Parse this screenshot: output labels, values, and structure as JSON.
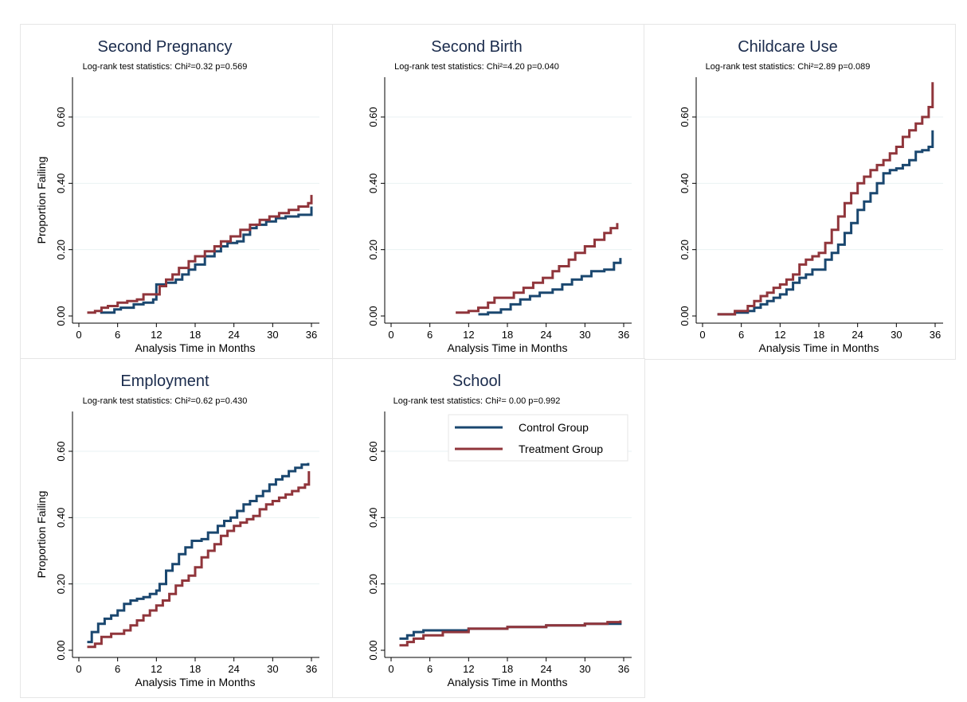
{
  "colors": {
    "control": "#1a476f",
    "treatment": "#90353b",
    "title": "#1a2b4c",
    "grid": "#eaf2f3",
    "axis": "#000000"
  },
  "legend": {
    "items": [
      "Control Group",
      "Treatment Group"
    ]
  },
  "chart_data": [
    {
      "type": "line",
      "title": "Second Pregnancy",
      "subtitle": "Log-rank test statistics: Chi²=0.32 p=0.569",
      "xlabel": "Analysis Time in Months",
      "ylabel": "Proportion Failing",
      "xlim": [
        0,
        36
      ],
      "ylim": [
        0,
        0.72
      ],
      "xticks": [
        "0",
        "6",
        "12",
        "18",
        "24",
        "30",
        "36"
      ],
      "yticks": [
        "0.00",
        "0.20",
        "0.40",
        "0.60"
      ],
      "grid": true,
      "series": [
        {
          "name": "Control Group",
          "x": [
            3.3,
            4.5,
            5.5,
            6.5,
            8.5,
            10,
            11.5,
            12,
            13.5,
            15,
            16,
            17,
            18,
            19.5,
            21,
            22,
            23,
            24.5,
            25.5,
            26.5,
            27.5,
            29,
            30.5,
            32,
            34,
            36
          ],
          "y": [
            0.01,
            0.01,
            0.02,
            0.025,
            0.035,
            0.04,
            0.05,
            0.095,
            0.1,
            0.11,
            0.125,
            0.14,
            0.155,
            0.18,
            0.195,
            0.21,
            0.22,
            0.225,
            0.245,
            0.265,
            0.275,
            0.285,
            0.295,
            0.3,
            0.305,
            0.33
          ]
        },
        {
          "name": "Treatment Group",
          "x": [
            1.3,
            2.5,
            3.5,
            4.5,
            6,
            7.5,
            9,
            10,
            12.5,
            13.5,
            14.5,
            15.5,
            17,
            18,
            19.5,
            21,
            22,
            23.5,
            25,
            26.5,
            28,
            29.5,
            31,
            32.5,
            34,
            35.5,
            36
          ],
          "y": [
            0.01,
            0.015,
            0.025,
            0.03,
            0.04,
            0.045,
            0.05,
            0.065,
            0.09,
            0.11,
            0.125,
            0.145,
            0.165,
            0.18,
            0.195,
            0.21,
            0.225,
            0.24,
            0.26,
            0.275,
            0.29,
            0.3,
            0.31,
            0.32,
            0.33,
            0.34,
            0.365
          ]
        }
      ]
    },
    {
      "type": "line",
      "title": "Second Birth",
      "subtitle": "Log-rank test statistics: Chi²=4.20 p=0.040",
      "xlabel": "Analysis Time in Months",
      "ylabel": "",
      "xlim": [
        0,
        36
      ],
      "ylim": [
        0,
        0.72
      ],
      "xticks": [
        "0",
        "6",
        "12",
        "18",
        "24",
        "30",
        "36"
      ],
      "yticks": [
        "0.00",
        "0.20",
        "0.40",
        "0.60"
      ],
      "grid": true,
      "series": [
        {
          "name": "Control Group",
          "x": [
            13.5,
            15,
            17,
            18.5,
            20,
            21.5,
            23,
            25,
            26.5,
            28,
            29.5,
            31,
            33,
            34.5,
            35.5
          ],
          "y": [
            0.005,
            0.01,
            0.02,
            0.035,
            0.05,
            0.06,
            0.07,
            0.08,
            0.095,
            0.11,
            0.12,
            0.135,
            0.14,
            0.16,
            0.175
          ]
        },
        {
          "name": "Treatment Group",
          "x": [
            10,
            12,
            13.5,
            15,
            16,
            17,
            19,
            20.5,
            22,
            23.5,
            25,
            26,
            27.5,
            28.5,
            30,
            31.5,
            33,
            34,
            35
          ],
          "y": [
            0.01,
            0.015,
            0.025,
            0.04,
            0.055,
            0.055,
            0.07,
            0.085,
            0.1,
            0.115,
            0.135,
            0.15,
            0.17,
            0.19,
            0.21,
            0.23,
            0.25,
            0.265,
            0.28
          ]
        }
      ]
    },
    {
      "type": "line",
      "title": "Childcare Use",
      "subtitle": "Log-rank test statistics: Chi²=2.89 p=0.089",
      "xlabel": "Analysis Time in Months",
      "ylabel": "",
      "xlim": [
        0,
        36
      ],
      "ylim": [
        0,
        0.72
      ],
      "xticks": [
        "0",
        "6",
        "12",
        "18",
        "24",
        "30",
        "36"
      ],
      "yticks": [
        "0.00",
        "0.20",
        "0.40",
        "0.60"
      ],
      "grid": true,
      "series": [
        {
          "name": "Control Group",
          "x": [
            2.3,
            5,
            7,
            8,
            9,
            10,
            11,
            12,
            13,
            14,
            15,
            16,
            17,
            18,
            19,
            20,
            21,
            22,
            23,
            24,
            25,
            26,
            27,
            28,
            29,
            30,
            31,
            32,
            33,
            34,
            35,
            35.6
          ],
          "y": [
            0.005,
            0.01,
            0.015,
            0.025,
            0.035,
            0.045,
            0.055,
            0.065,
            0.08,
            0.1,
            0.115,
            0.125,
            0.14,
            0.14,
            0.17,
            0.19,
            0.215,
            0.25,
            0.28,
            0.32,
            0.345,
            0.37,
            0.4,
            0.43,
            0.44,
            0.445,
            0.455,
            0.47,
            0.495,
            0.5,
            0.51,
            0.56
          ]
        },
        {
          "name": "Treatment Group",
          "x": [
            2.3,
            5,
            7,
            8,
            9,
            10,
            11,
            12,
            13,
            14,
            15,
            16,
            17,
            18,
            19,
            20,
            21,
            22,
            23,
            24,
            25,
            26,
            27,
            28,
            29,
            30,
            31,
            32,
            33,
            34,
            35,
            35.6
          ],
          "y": [
            0.005,
            0.015,
            0.03,
            0.045,
            0.06,
            0.07,
            0.085,
            0.095,
            0.11,
            0.125,
            0.155,
            0.17,
            0.18,
            0.19,
            0.22,
            0.26,
            0.3,
            0.34,
            0.37,
            0.4,
            0.42,
            0.44,
            0.455,
            0.47,
            0.49,
            0.51,
            0.54,
            0.56,
            0.58,
            0.6,
            0.63,
            0.705
          ]
        }
      ]
    },
    {
      "type": "line",
      "title": "Employment",
      "subtitle": "Log-rank test statistics: Chi²=0.62 p=0.430",
      "xlabel": "Analysis Time in Months",
      "ylabel": "Proportion Failing",
      "xlim": [
        0,
        36
      ],
      "ylim": [
        0,
        0.72
      ],
      "xticks": [
        "0",
        "6",
        "12",
        "18",
        "24",
        "30",
        "36"
      ],
      "yticks": [
        "0.00",
        "0.20",
        "0.40",
        "0.60"
      ],
      "grid": true,
      "series": [
        {
          "name": "Control Group",
          "x": [
            1.3,
            2,
            3,
            4,
            5,
            6,
            7,
            8,
            9,
            10,
            11,
            12,
            12.5,
            13.5,
            14.5,
            15.5,
            16.5,
            17.5,
            19,
            20,
            21.5,
            22.5,
            23.5,
            24.5,
            25.5,
            26.5,
            27.5,
            28.5,
            29.5,
            30.5,
            31.5,
            32.5,
            33.5,
            34.5,
            35.5
          ],
          "y": [
            0.025,
            0.055,
            0.08,
            0.095,
            0.105,
            0.12,
            0.14,
            0.15,
            0.155,
            0.16,
            0.17,
            0.18,
            0.2,
            0.24,
            0.26,
            0.29,
            0.31,
            0.33,
            0.335,
            0.355,
            0.375,
            0.39,
            0.4,
            0.42,
            0.44,
            0.45,
            0.465,
            0.48,
            0.5,
            0.515,
            0.525,
            0.54,
            0.55,
            0.56,
            0.565
          ]
        },
        {
          "name": "Treatment Group",
          "x": [
            1.3,
            2.5,
            3.5,
            5,
            7,
            8,
            9,
            10,
            11,
            12,
            13,
            14,
            15,
            16,
            17,
            18,
            19,
            20,
            21,
            22,
            23,
            24,
            25,
            26,
            27,
            28,
            29,
            30,
            31,
            32,
            33,
            34,
            35,
            35.6
          ],
          "y": [
            0.01,
            0.02,
            0.04,
            0.05,
            0.06,
            0.075,
            0.09,
            0.105,
            0.12,
            0.135,
            0.15,
            0.17,
            0.195,
            0.21,
            0.225,
            0.25,
            0.28,
            0.3,
            0.32,
            0.345,
            0.36,
            0.375,
            0.385,
            0.395,
            0.405,
            0.425,
            0.44,
            0.45,
            0.46,
            0.47,
            0.48,
            0.49,
            0.5,
            0.54
          ]
        }
      ]
    },
    {
      "type": "line",
      "title": "School",
      "subtitle": "Log-rank test statistics: Chi²= 0.00 p=0.992",
      "xlabel": "Analysis Time in Months",
      "ylabel": "",
      "xlim": [
        0,
        36
      ],
      "ylim": [
        0,
        0.72
      ],
      "xticks": [
        "0",
        "6",
        "12",
        "18",
        "24",
        "30",
        "36"
      ],
      "yticks": [
        "0.00",
        "0.20",
        "0.40",
        "0.60"
      ],
      "grid": true,
      "legend_position": "top-right",
      "series": [
        {
          "name": "Control Group",
          "x": [
            1.3,
            2.5,
            3.5,
            5,
            12,
            18,
            24,
            30,
            35.5
          ],
          "y": [
            0.035,
            0.045,
            0.055,
            0.06,
            0.065,
            0.07,
            0.075,
            0.08,
            0.085
          ]
        },
        {
          "name": "Treatment Group",
          "x": [
            1.3,
            2.5,
            3.5,
            5,
            8,
            12,
            18,
            24,
            30,
            33.5,
            35.5
          ],
          "y": [
            0.015,
            0.025,
            0.035,
            0.045,
            0.055,
            0.065,
            0.07,
            0.075,
            0.08,
            0.085,
            0.09
          ]
        }
      ]
    }
  ]
}
